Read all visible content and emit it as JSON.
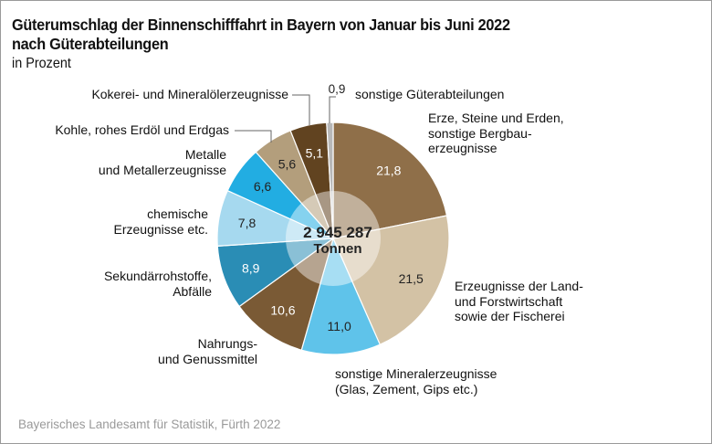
{
  "title_line1": "Güterumschlag der Binnenschifffahrt in Bayern von Januar bis Juni 2022",
  "title_line2": "nach Güterabteilungen",
  "subtitle": "in Prozent",
  "source": "Bayerisches Landesamt für Statistik, Fürth 2022",
  "center_label": {
    "value": "2 945 287",
    "unit": "Tonnen"
  },
  "chart_data": {
    "type": "pie",
    "title": "Güterumschlag der Binnenschifffahrt in Bayern von Januar bis Juni 2022 nach Güterabteilungen",
    "subtitle": "in Prozent",
    "total": "2 945 287 Tonnen",
    "start": "12 o'clock",
    "direction": "clockwise",
    "slices": [
      {
        "label": "Erze, Steine und Erden, sonstige Bergbauerzeugnisse",
        "value": 21.8,
        "display": "21,8",
        "color": "#8f6f49",
        "text_color": "#ffffff"
      },
      {
        "label": "Erzeugnisse der Land- und Forstwirtschaft sowie der Fischerei",
        "value": 21.5,
        "display": "21,5",
        "color": "#d3c2a5",
        "text_color": "#222222"
      },
      {
        "label": "sonstige Mineralerzeugnisse (Glas, Zement, Gips etc.)",
        "value": 11.0,
        "display": "11,0",
        "color": "#5fc3ea",
        "text_color": "#222222"
      },
      {
        "label": "Nahrungs- und Genussmittel",
        "value": 10.6,
        "display": "10,6",
        "color": "#7a5a35",
        "text_color": "#ffffff"
      },
      {
        "label": "Sekundärrohstoffe, Abfälle",
        "value": 8.9,
        "display": "8,9",
        "color": "#2a8db5",
        "text_color": "#ffffff"
      },
      {
        "label": "chemische Erzeugnisse etc.",
        "value": 7.8,
        "display": "7,8",
        "color": "#a6d9ef",
        "text_color": "#222222"
      },
      {
        "label": "Metalle und Metallerzeugnisse",
        "value": 6.6,
        "display": "6,6",
        "color": "#22ade2",
        "text_color": "#222222"
      },
      {
        "label": "Kohle, rohes Erdöl und Erdgas",
        "value": 5.6,
        "display": "5,6",
        "color": "#b39e7c",
        "text_color": "#222222"
      },
      {
        "label": "Kokerei- und Mineralölerzeugnisse",
        "value": 5.1,
        "display": "5,1",
        "color": "#614320",
        "text_color": "#ffffff"
      },
      {
        "label": "sonstige Güterabteilungen",
        "value": 0.9,
        "display": "0,9",
        "color": "#b8b8b8",
        "text_color": "#222222"
      }
    ]
  },
  "labels": {
    "erze": [
      "Erze, Steine und Erden,",
      "sonstige Bergbau-",
      "erzeugnisse"
    ],
    "land": [
      "Erzeugnisse der Land-",
      "und Forstwirtschaft",
      "sowie der Fischerei"
    ],
    "mineral": [
      "sonstige Mineralerzeugnisse",
      "(Glas, Zement, Gips etc.)"
    ],
    "nahrung": [
      "Nahrungs-",
      "und Genussmittel"
    ],
    "sekundaer": [
      "Sekundärrohstoffe,",
      "Abfälle"
    ],
    "chemie": [
      "chemische",
      "Erzeugnisse etc."
    ],
    "metalle": [
      "Metalle",
      "und Metallerzeugnisse"
    ],
    "kohle": [
      "Kohle, rohes Erdöl und Erdgas"
    ],
    "kokerei": [
      "Kokerei- und Mineralölerzeugnisse"
    ],
    "sonstige": [
      "sonstige Güterabteilungen"
    ],
    "sonstige_value": "0,9"
  }
}
